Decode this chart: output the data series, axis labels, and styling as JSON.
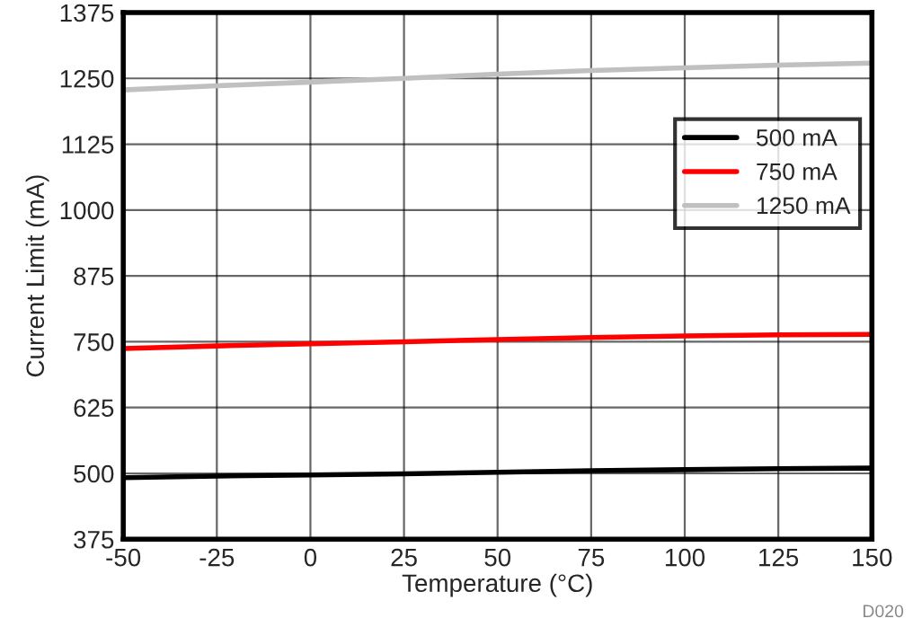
{
  "chart_data": {
    "type": "line",
    "xlabel": "Temperature (°C)",
    "ylabel": "Current Limit (mA)",
    "x": [
      -50,
      -25,
      0,
      25,
      50,
      75,
      100,
      125,
      150
    ],
    "series": [
      {
        "name": "500 mA",
        "color": "#000000",
        "values": [
          492,
          495,
          497,
          499,
          502,
          505,
          507,
          509,
          510
        ]
      },
      {
        "name": "750 mA",
        "color": "#ff0000",
        "values": [
          737,
          742,
          746,
          750,
          754,
          758,
          761,
          763,
          764
        ]
      },
      {
        "name": "1250 mA",
        "color": "#c0c0c0",
        "values": [
          1228,
          1236,
          1243,
          1250,
          1258,
          1265,
          1270,
          1275,
          1279
        ]
      }
    ],
    "xlim": [
      -50,
      150
    ],
    "xticks": [
      -50,
      -25,
      0,
      25,
      50,
      75,
      100,
      125,
      150
    ],
    "ylim": [
      375,
      1375
    ],
    "yticks": [
      375,
      500,
      625,
      750,
      875,
      1000,
      1125,
      1250,
      1375
    ],
    "grid": true,
    "legend": "top right",
    "marker": "none",
    "line_style": "solid",
    "annotations": [
      "D020"
    ]
  }
}
